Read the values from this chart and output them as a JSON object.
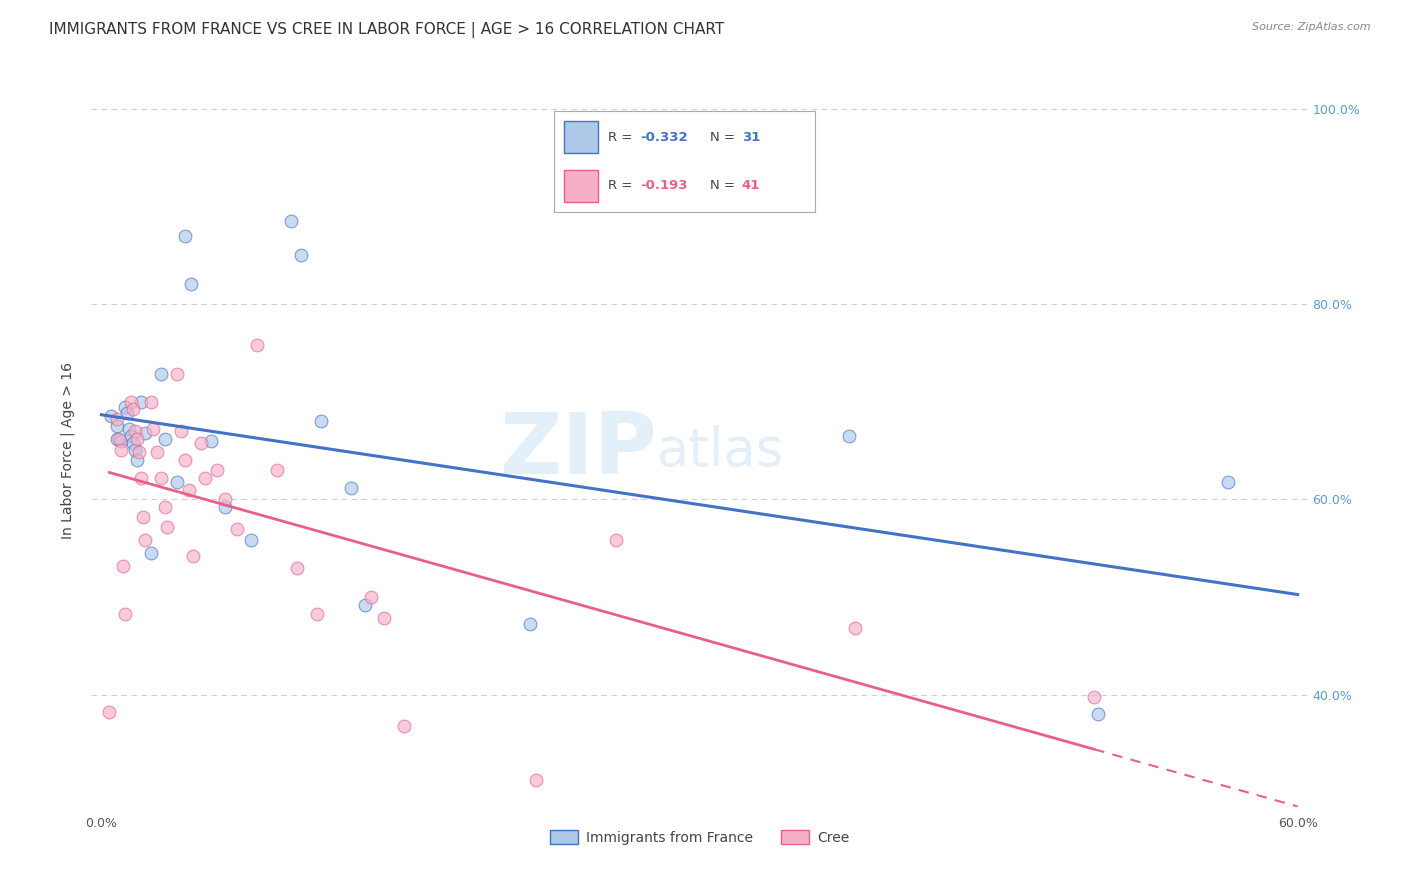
{
  "title": "IMMIGRANTS FROM FRANCE VS CREE IN LABOR FORCE | AGE > 16 CORRELATION CHART",
  "source": "Source: ZipAtlas.com",
  "ylabel": "In Labor Force | Age > 16",
  "watermark_zip": "ZIP",
  "watermark_atlas": "atlas",
  "legend_label_blue": "Immigrants from France",
  "legend_label_pink": "Cree",
  "xlim": [
    -0.005,
    0.605
  ],
  "ylim": [
    0.28,
    1.02
  ],
  "x_ticks": [
    0.0,
    0.1,
    0.2,
    0.3,
    0.4,
    0.5,
    0.6
  ],
  "x_tick_labels": [
    "0.0%",
    "",
    "",
    "",
    "",
    "",
    "60.0%"
  ],
  "y_ticks": [
    0.4,
    0.6,
    0.8,
    1.0
  ],
  "y_tick_labels": [
    "40.0%",
    "60.0%",
    "80.0%",
    "100.0%"
  ],
  "blue_x": [
    0.005,
    0.008,
    0.008,
    0.01,
    0.012,
    0.013,
    0.014,
    0.015,
    0.016,
    0.017,
    0.018,
    0.02,
    0.022,
    0.025,
    0.03,
    0.032,
    0.038,
    0.042,
    0.045,
    0.055,
    0.062,
    0.075,
    0.095,
    0.1,
    0.11,
    0.125,
    0.132,
    0.215,
    0.375,
    0.5,
    0.565
  ],
  "blue_y": [
    0.685,
    0.675,
    0.662,
    0.66,
    0.695,
    0.688,
    0.672,
    0.665,
    0.658,
    0.65,
    0.64,
    0.7,
    0.668,
    0.545,
    0.728,
    0.662,
    0.618,
    0.87,
    0.82,
    0.66,
    0.592,
    0.558,
    0.885,
    0.85,
    0.68,
    0.612,
    0.492,
    0.472,
    0.665,
    0.38,
    0.618
  ],
  "pink_x": [
    0.004,
    0.008,
    0.009,
    0.01,
    0.011,
    0.012,
    0.015,
    0.016,
    0.017,
    0.018,
    0.019,
    0.02,
    0.021,
    0.022,
    0.025,
    0.026,
    0.028,
    0.03,
    0.032,
    0.033,
    0.038,
    0.04,
    0.042,
    0.044,
    0.046,
    0.05,
    0.052,
    0.058,
    0.062,
    0.068,
    0.078,
    0.088,
    0.098,
    0.108,
    0.135,
    0.142,
    0.152,
    0.218,
    0.258,
    0.378,
    0.498
  ],
  "pink_y": [
    0.382,
    0.682,
    0.662,
    0.65,
    0.532,
    0.482,
    0.7,
    0.692,
    0.67,
    0.662,
    0.648,
    0.622,
    0.582,
    0.558,
    0.7,
    0.672,
    0.648,
    0.622,
    0.592,
    0.572,
    0.728,
    0.67,
    0.64,
    0.61,
    0.542,
    0.658,
    0.622,
    0.63,
    0.6,
    0.57,
    0.758,
    0.63,
    0.53,
    0.482,
    0.5,
    0.478,
    0.368,
    0.312,
    0.558,
    0.468,
    0.398
  ],
  "blue_color": "#adc8e8",
  "pink_color": "#f5b0c8",
  "blue_line_color": "#4472c4",
  "pink_line_color": "#e8608a",
  "marker_size": 85,
  "marker_alpha": 0.65,
  "grid_color": "#d0d0d0",
  "background_color": "#ffffff",
  "title_fontsize": 11,
  "axis_label_fontsize": 10,
  "tick_fontsize": 9,
  "right_tick_color": "#5b9bd5",
  "legend_r_blue": "-0.332",
  "legend_n_blue": "31",
  "legend_r_pink": "-0.193",
  "legend_n_pink": "41"
}
